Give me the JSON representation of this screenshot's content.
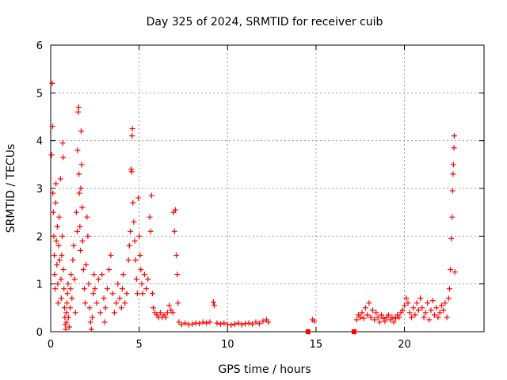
{
  "chart_data": {
    "type": "scatter",
    "title": "Day 325 of 2024, SRMTID for receiver cuib",
    "xlabel": "GPS time / hours",
    "ylabel": "SRMTID / TECUs",
    "xlim": [
      0,
      24.5
    ],
    "ylim": [
      0,
      6
    ],
    "xticks": [
      0,
      5,
      10,
      15,
      20
    ],
    "yticks": [
      0,
      1,
      2,
      3,
      4,
      5,
      6
    ],
    "grid": true,
    "marker": "+",
    "marker_color": "#ff0000",
    "series": [
      {
        "name": "SRMTID",
        "points": [
          [
            0.05,
            3.7
          ],
          [
            0.08,
            5.2
          ],
          [
            0.1,
            4.3
          ],
          [
            0.12,
            2.9
          ],
          [
            0.15,
            2.5
          ],
          [
            0.18,
            2.0
          ],
          [
            0.2,
            1.6
          ],
          [
            0.22,
            1.2
          ],
          [
            0.25,
            0.9
          ],
          [
            0.28,
            2.7
          ],
          [
            0.3,
            3.1
          ],
          [
            0.32,
            1.9
          ],
          [
            0.35,
            1.4
          ],
          [
            0.38,
            2.2
          ],
          [
            0.4,
            1.0
          ],
          [
            0.42,
            0.6
          ],
          [
            0.45,
            1.8
          ],
          [
            0.48,
            2.4
          ],
          [
            0.5,
            1.5
          ],
          [
            0.55,
            3.2
          ],
          [
            0.58,
            1.1
          ],
          [
            0.6,
            0.7
          ],
          [
            0.62,
            1.6
          ],
          [
            0.65,
            2.0
          ],
          [
            0.68,
            3.95
          ],
          [
            0.7,
            3.65
          ],
          [
            0.72,
            1.3
          ],
          [
            0.75,
            0.9
          ],
          [
            0.78,
            0.5
          ],
          [
            0.8,
            0.3
          ],
          [
            0.82,
            0.15
          ],
          [
            0.85,
            0.05
          ],
          [
            0.88,
            0.4
          ],
          [
            0.9,
            0.2
          ],
          [
            0.92,
            0.6
          ],
          [
            0.95,
            0.8
          ],
          [
            0.98,
            1.0
          ],
          [
            1.0,
            0.3
          ],
          [
            1.05,
            0.1
          ],
          [
            1.1,
            0.5
          ],
          [
            1.12,
            0.9
          ],
          [
            1.15,
            1.2
          ],
          [
            1.2,
            0.7
          ],
          [
            1.25,
            1.5
          ],
          [
            1.3,
            1.8
          ],
          [
            1.35,
            1.1
          ],
          [
            1.4,
            0.4
          ],
          [
            1.45,
            2.5
          ],
          [
            1.5,
            2.1
          ],
          [
            1.52,
            3.8
          ],
          [
            1.55,
            4.6
          ],
          [
            1.58,
            4.7
          ],
          [
            1.6,
            3.3
          ],
          [
            1.62,
            2.9
          ],
          [
            1.65,
            2.2
          ],
          [
            1.68,
            1.7
          ],
          [
            1.7,
            3.0
          ],
          [
            1.72,
            4.2
          ],
          [
            1.75,
            3.5
          ],
          [
            1.78,
            2.6
          ],
          [
            1.8,
            1.9
          ],
          [
            1.85,
            1.3
          ],
          [
            1.9,
            0.9
          ],
          [
            1.95,
            0.6
          ],
          [
            2.0,
            1.4
          ],
          [
            2.05,
            2.4
          ],
          [
            2.1,
            2.0
          ],
          [
            2.15,
            1.0
          ],
          [
            2.2,
            0.5
          ],
          [
            2.25,
            0.2
          ],
          [
            2.3,
            0.05
          ],
          [
            2.35,
            0.3
          ],
          [
            2.4,
            0.8
          ],
          [
            2.45,
            1.2
          ],
          [
            2.5,
            0.9
          ],
          [
            2.6,
            0.6
          ],
          [
            2.7,
            1.1
          ],
          [
            2.8,
            0.4
          ],
          [
            2.9,
            1.2
          ],
          [
            3.0,
            0.7
          ],
          [
            3.05,
            0.2
          ],
          [
            3.1,
            0.5
          ],
          [
            3.2,
            0.9
          ],
          [
            3.3,
            1.3
          ],
          [
            3.4,
            1.6
          ],
          [
            3.5,
            0.8
          ],
          [
            3.6,
            0.4
          ],
          [
            3.7,
            0.6
          ],
          [
            3.8,
            1.0
          ],
          [
            3.9,
            0.7
          ],
          [
            4.0,
            0.5
          ],
          [
            4.05,
            0.9
          ],
          [
            4.1,
            1.2
          ],
          [
            4.2,
            0.6
          ],
          [
            4.3,
            0.8
          ],
          [
            4.4,
            1.5
          ],
          [
            4.45,
            1.8
          ],
          [
            4.5,
            2.1
          ],
          [
            4.55,
            3.4
          ],
          [
            4.58,
            3.35
          ],
          [
            4.6,
            4.1
          ],
          [
            4.62,
            4.25
          ],
          [
            4.65,
            2.7
          ],
          [
            4.7,
            2.3
          ],
          [
            4.75,
            1.9
          ],
          [
            4.8,
            1.5
          ],
          [
            4.85,
            1.1
          ],
          [
            4.9,
            0.8
          ],
          [
            4.95,
            2.8
          ],
          [
            5.0,
            2.0
          ],
          [
            5.05,
            1.6
          ],
          [
            5.1,
            1.3
          ],
          [
            5.15,
            1.0
          ],
          [
            5.2,
            0.8
          ],
          [
            5.3,
            1.2
          ],
          [
            5.4,
            0.9
          ],
          [
            5.5,
            1.1
          ],
          [
            5.6,
            2.4
          ],
          [
            5.65,
            2.1
          ],
          [
            5.7,
            2.85
          ],
          [
            5.75,
            0.8
          ],
          [
            5.8,
            0.5
          ],
          [
            5.9,
            0.4
          ],
          [
            6.0,
            0.35
          ],
          [
            6.1,
            0.3
          ],
          [
            6.2,
            0.4
          ],
          [
            6.3,
            0.3
          ],
          [
            6.4,
            0.35
          ],
          [
            6.5,
            0.3
          ],
          [
            6.6,
            0.4
          ],
          [
            6.7,
            0.55
          ],
          [
            6.8,
            0.45
          ],
          [
            6.9,
            0.4
          ],
          [
            6.95,
            2.5
          ],
          [
            7.0,
            2.1
          ],
          [
            7.05,
            2.55
          ],
          [
            7.1,
            1.6
          ],
          [
            7.15,
            1.2
          ],
          [
            7.2,
            0.6
          ],
          [
            7.25,
            0.2
          ],
          [
            7.4,
            0.15
          ],
          [
            7.6,
            0.18
          ],
          [
            7.8,
            0.15
          ],
          [
            8.0,
            0.16
          ],
          [
            8.2,
            0.18
          ],
          [
            8.4,
            0.17
          ],
          [
            8.6,
            0.2
          ],
          [
            8.8,
            0.18
          ],
          [
            9.0,
            0.2
          ],
          [
            9.2,
            0.62
          ],
          [
            9.25,
            0.55
          ],
          [
            9.4,
            0.18
          ],
          [
            9.6,
            0.16
          ],
          [
            9.8,
            0.18
          ],
          [
            10.0,
            0.15
          ],
          [
            10.2,
            0.14
          ],
          [
            10.4,
            0.16
          ],
          [
            10.6,
            0.18
          ],
          [
            10.8,
            0.15
          ],
          [
            11.0,
            0.17
          ],
          [
            11.2,
            0.18
          ],
          [
            11.4,
            0.16
          ],
          [
            11.6,
            0.2
          ],
          [
            11.8,
            0.17
          ],
          [
            12.0,
            0.22
          ],
          [
            12.2,
            0.25
          ],
          [
            12.3,
            0.2
          ],
          [
            14.6,
            0.0
          ],
          [
            14.8,
            0.25
          ],
          [
            14.9,
            0.22
          ],
          [
            17.2,
            0.0
          ],
          [
            17.3,
            0.25
          ],
          [
            17.4,
            0.35
          ],
          [
            17.5,
            0.3
          ],
          [
            17.6,
            0.4
          ],
          [
            17.7,
            0.28
          ],
          [
            17.8,
            0.5
          ],
          [
            17.9,
            0.35
          ],
          [
            18.0,
            0.6
          ],
          [
            18.1,
            0.3
          ],
          [
            18.2,
            0.45
          ],
          [
            18.3,
            0.25
          ],
          [
            18.4,
            0.4
          ],
          [
            18.5,
            0.3
          ],
          [
            18.6,
            0.2
          ],
          [
            18.7,
            0.35
          ],
          [
            18.8,
            0.28
          ],
          [
            18.9,
            0.22
          ],
          [
            19.0,
            0.3
          ],
          [
            19.1,
            0.35
          ],
          [
            19.2,
            0.25
          ],
          [
            19.3,
            0.3
          ],
          [
            19.4,
            0.2
          ],
          [
            19.5,
            0.28
          ],
          [
            19.6,
            0.35
          ],
          [
            19.7,
            0.3
          ],
          [
            19.8,
            0.4
          ],
          [
            19.9,
            0.45
          ],
          [
            20.0,
            0.55
          ],
          [
            20.1,
            0.7
          ],
          [
            20.2,
            0.6
          ],
          [
            20.3,
            0.4
          ],
          [
            20.4,
            0.3
          ],
          [
            20.5,
            0.5
          ],
          [
            20.6,
            0.35
          ],
          [
            20.7,
            0.6
          ],
          [
            20.8,
            0.45
          ],
          [
            20.9,
            0.7
          ],
          [
            21.0,
            0.5
          ],
          [
            21.1,
            0.3
          ],
          [
            21.2,
            0.4
          ],
          [
            21.3,
            0.6
          ],
          [
            21.4,
            0.25
          ],
          [
            21.5,
            0.45
          ],
          [
            21.6,
            0.65
          ],
          [
            21.7,
            0.35
          ],
          [
            21.8,
            0.5
          ],
          [
            21.9,
            0.3
          ],
          [
            22.0,
            0.4
          ],
          [
            22.1,
            0.55
          ],
          [
            22.2,
            0.45
          ],
          [
            22.3,
            0.6
          ],
          [
            22.4,
            0.3
          ],
          [
            22.5,
            0.7
          ],
          [
            22.55,
            0.9
          ],
          [
            22.6,
            1.3
          ],
          [
            22.65,
            1.95
          ],
          [
            22.7,
            2.4
          ],
          [
            22.72,
            2.95
          ],
          [
            22.75,
            3.3
          ],
          [
            22.77,
            3.5
          ],
          [
            22.8,
            3.85
          ],
          [
            22.82,
            4.1
          ],
          [
            22.85,
            1.25
          ]
        ]
      }
    ],
    "filled_markers": [
      [
        14.55,
        0.0
      ],
      [
        17.15,
        0.0
      ]
    ]
  }
}
